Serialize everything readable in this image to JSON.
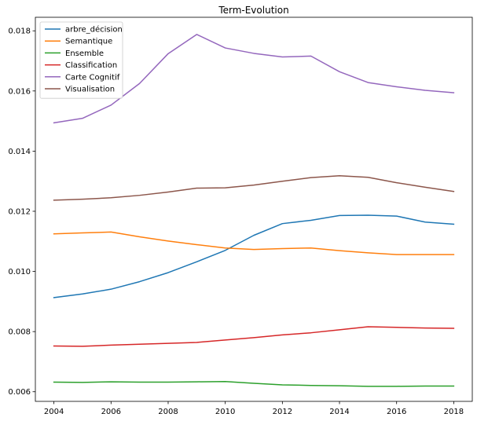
{
  "chart_data": {
    "type": "line",
    "title": "Term-Evolution",
    "xlabel": "",
    "ylabel": "",
    "x": [
      2004,
      2005,
      2006,
      2007,
      2008,
      2009,
      2010,
      2011,
      2012,
      2013,
      2014,
      2015,
      2016,
      2017,
      2018
    ],
    "xlim": [
      2003.35,
      2018.65
    ],
    "ylim": [
      0.00568,
      0.01845
    ],
    "xticks": [
      2004,
      2006,
      2008,
      2010,
      2012,
      2014,
      2016,
      2018
    ],
    "xtick_labels": [
      "2004",
      "2006",
      "2008",
      "2010",
      "2012",
      "2014",
      "2016",
      "2018"
    ],
    "yticks": [
      0.006,
      0.008,
      0.01,
      0.012,
      0.014,
      0.016,
      0.018
    ],
    "ytick_labels": [
      "0.006",
      "0.008",
      "0.010",
      "0.012",
      "0.014",
      "0.016",
      "0.018"
    ],
    "grid": false,
    "legend_position": "top-left",
    "series": [
      {
        "name": "arbre_décision",
        "color": "#1f77b4",
        "values": [
          0.00913,
          0.00925,
          0.00941,
          0.00966,
          0.00996,
          0.01032,
          0.0107,
          0.0112,
          0.01159,
          0.0117,
          0.01186,
          0.01187,
          0.01184,
          0.01164,
          0.01157
        ]
      },
      {
        "name": "Semantique",
        "color": "#ff7f0e",
        "values": [
          0.01125,
          0.01128,
          0.01131,
          0.01115,
          0.01101,
          0.01089,
          0.01078,
          0.01073,
          0.01076,
          0.01078,
          0.01069,
          0.01062,
          0.01056,
          0.01056,
          0.01056
        ]
      },
      {
        "name": "Ensemble",
        "color": "#2ca02c",
        "values": [
          0.00632,
          0.00631,
          0.00633,
          0.00632,
          0.00632,
          0.00633,
          0.00634,
          0.00628,
          0.00623,
          0.00621,
          0.0062,
          0.00618,
          0.00618,
          0.00619,
          0.00619
        ]
      },
      {
        "name": "Classification",
        "color": "#d62728",
        "values": [
          0.00752,
          0.00751,
          0.00755,
          0.00758,
          0.00761,
          0.00764,
          0.00772,
          0.0078,
          0.00789,
          0.00796,
          0.00806,
          0.00816,
          0.00814,
          0.00812,
          0.00811
        ]
      },
      {
        "name": "Carte Cognitif",
        "color": "#9467bd",
        "values": [
          0.01494,
          0.01509,
          0.01553,
          0.01625,
          0.01724,
          0.01788,
          0.01743,
          0.01725,
          0.01713,
          0.01716,
          0.01664,
          0.01628,
          0.01614,
          0.01602,
          0.01594
        ]
      },
      {
        "name": "Visualisation",
        "color": "#8c564b",
        "values": [
          0.01237,
          0.0124,
          0.01245,
          0.01253,
          0.01264,
          0.01277,
          0.01278,
          0.01287,
          0.013,
          0.01312,
          0.01318,
          0.01313,
          0.01295,
          0.0128,
          0.01266
        ]
      }
    ]
  }
}
